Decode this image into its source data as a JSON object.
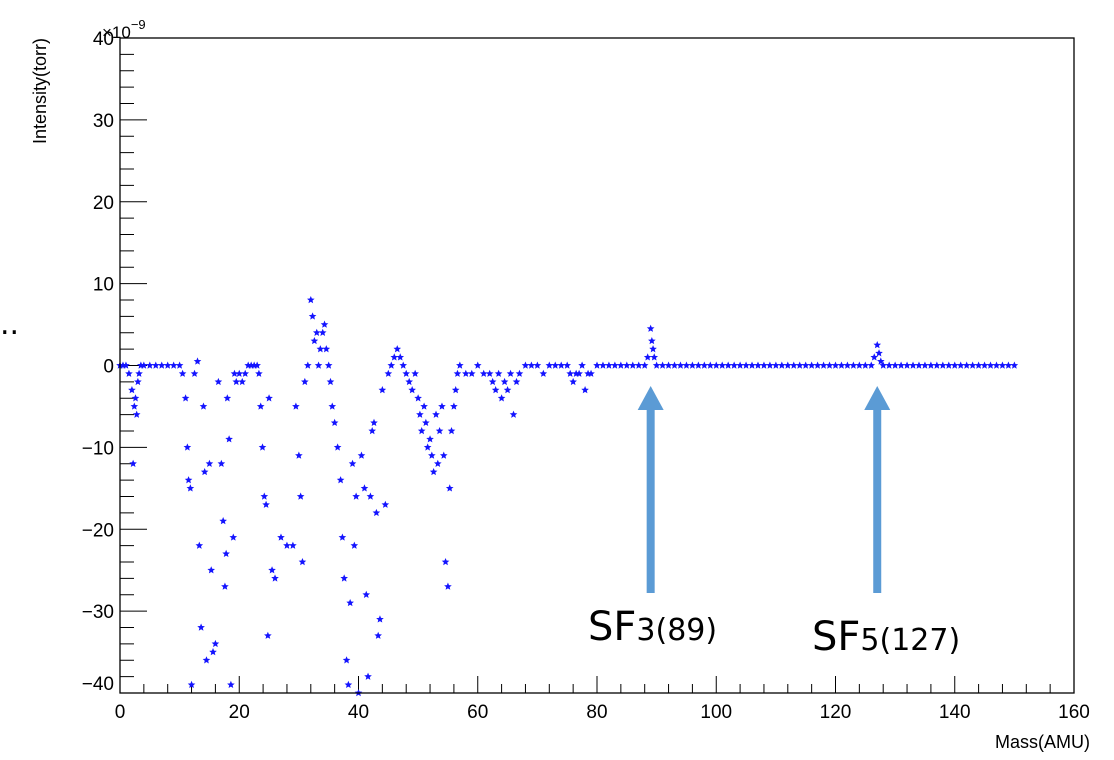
{
  "chart_data": {
    "type": "scatter",
    "title": "",
    "xlabel": "Mass(AMU)",
    "ylabel": "Intensity(torr)",
    "y_multiplier_label": "×10",
    "y_multiplier_exponent": "−9",
    "xlim": [
      0,
      160
    ],
    "ylim": [
      -40,
      40
    ],
    "x_ticks": [
      0,
      20,
      40,
      60,
      80,
      100,
      120,
      140,
      160
    ],
    "x_tick_labels": [
      "0",
      "20",
      "40",
      "60",
      "80",
      "100",
      "120",
      "140",
      "160"
    ],
    "y_ticks": [
      -40,
      -30,
      -20,
      -10,
      0,
      10,
      20,
      30,
      40
    ],
    "y_tick_labels": [
      "−40",
      "−30",
      "−20",
      "−10",
      "0",
      "10",
      "20",
      "30",
      "40"
    ],
    "marker_color": "#1414ff",
    "grid": false,
    "series": [
      {
        "points": [
          [
            0,
            0
          ],
          [
            0.5,
            0
          ],
          [
            1,
            0
          ],
          [
            1.5,
            -1
          ],
          [
            2,
            -3
          ],
          [
            2.2,
            -12
          ],
          [
            2.4,
            -5
          ],
          [
            2.6,
            -4
          ],
          [
            2.8,
            -6
          ],
          [
            3,
            -2
          ],
          [
            3.2,
            -1
          ],
          [
            3.5,
            0
          ],
          [
            4,
            0
          ],
          [
            5,
            0
          ],
          [
            6,
            0
          ],
          [
            7,
            0
          ],
          [
            8,
            0
          ],
          [
            9,
            0
          ],
          [
            10,
            0
          ],
          [
            10.5,
            -1
          ],
          [
            11,
            -4
          ],
          [
            11.3,
            -10
          ],
          [
            11.5,
            -14
          ],
          [
            11.8,
            -15
          ],
          [
            12,
            -39
          ],
          [
            12.5,
            -1
          ],
          [
            13,
            0.5
          ],
          [
            13.3,
            -22
          ],
          [
            13.6,
            -32
          ],
          [
            14,
            -5
          ],
          [
            14.2,
            -13
          ],
          [
            14.5,
            -36
          ],
          [
            15,
            -12
          ],
          [
            15.3,
            -25
          ],
          [
            15.6,
            -35
          ],
          [
            16,
            -34
          ],
          [
            16.5,
            -2
          ],
          [
            17,
            -12
          ],
          [
            17.3,
            -19
          ],
          [
            17.6,
            -27
          ],
          [
            17.8,
            -23
          ],
          [
            18,
            -4
          ],
          [
            18.3,
            -9
          ],
          [
            18.6,
            -39
          ],
          [
            19,
            -21
          ],
          [
            19.2,
            -1
          ],
          [
            19.5,
            -2
          ],
          [
            20,
            -1
          ],
          [
            20.5,
            -2
          ],
          [
            21,
            -1
          ],
          [
            21.5,
            0
          ],
          [
            22,
            0
          ],
          [
            22.5,
            0
          ],
          [
            23,
            0
          ],
          [
            23.3,
            -1
          ],
          [
            23.6,
            -5
          ],
          [
            23.9,
            -10
          ],
          [
            24.2,
            -16
          ],
          [
            24.5,
            -17
          ],
          [
            24.8,
            -33
          ],
          [
            25,
            -4
          ],
          [
            25.5,
            -25
          ],
          [
            26,
            -26
          ],
          [
            27,
            -21
          ],
          [
            28,
            -22
          ],
          [
            29,
            -22
          ],
          [
            29.5,
            -5
          ],
          [
            30,
            -11
          ],
          [
            30.3,
            -16
          ],
          [
            30.6,
            -24
          ],
          [
            31,
            -2
          ],
          [
            31.5,
            0
          ],
          [
            32,
            8
          ],
          [
            32.3,
            6
          ],
          [
            32.6,
            3
          ],
          [
            33,
            4
          ],
          [
            33.3,
            0
          ],
          [
            33.6,
            2
          ],
          [
            34,
            4
          ],
          [
            34.3,
            5
          ],
          [
            34.6,
            2
          ],
          [
            35,
            0
          ],
          [
            35.3,
            -2
          ],
          [
            35.6,
            -5
          ],
          [
            36,
            -7
          ],
          [
            36.5,
            -10
          ],
          [
            37,
            -14
          ],
          [
            37.3,
            -21
          ],
          [
            37.6,
            -26
          ],
          [
            38,
            -36
          ],
          [
            38.3,
            -39
          ],
          [
            38.6,
            -29
          ],
          [
            39,
            -12
          ],
          [
            39.3,
            -22
          ],
          [
            39.6,
            -16
          ],
          [
            40,
            -40
          ],
          [
            40.5,
            -11
          ],
          [
            41,
            -15
          ],
          [
            41.3,
            -28
          ],
          [
            41.6,
            -38
          ],
          [
            42,
            -16
          ],
          [
            42.3,
            -8
          ],
          [
            42.6,
            -7
          ],
          [
            43,
            -18
          ],
          [
            43.3,
            -33
          ],
          [
            43.6,
            -31
          ],
          [
            44,
            -3
          ],
          [
            44.5,
            -17
          ],
          [
            45,
            -1
          ],
          [
            45.5,
            0
          ],
          [
            46,
            1
          ],
          [
            46.5,
            2
          ],
          [
            47,
            1
          ],
          [
            47.5,
            0
          ],
          [
            48,
            -1
          ],
          [
            48.5,
            -2
          ],
          [
            49,
            -3
          ],
          [
            49.5,
            -1
          ],
          [
            50,
            -4
          ],
          [
            50.3,
            -6
          ],
          [
            50.6,
            -8
          ],
          [
            51,
            -5
          ],
          [
            51.3,
            -7
          ],
          [
            51.6,
            -10
          ],
          [
            52,
            -9
          ],
          [
            52.3,
            -11
          ],
          [
            52.6,
            -13
          ],
          [
            53,
            -6
          ],
          [
            53.3,
            -12
          ],
          [
            53.6,
            -8
          ],
          [
            54,
            -5
          ],
          [
            54.3,
            -11
          ],
          [
            54.6,
            -24
          ],
          [
            55,
            -27
          ],
          [
            55.3,
            -15
          ],
          [
            55.6,
            -8
          ],
          [
            56,
            -5
          ],
          [
            56.3,
            -3
          ],
          [
            56.6,
            -1
          ],
          [
            57,
            0
          ],
          [
            58,
            -1
          ],
          [
            59,
            -1
          ],
          [
            60,
            0
          ],
          [
            61,
            -1
          ],
          [
            62,
            -1
          ],
          [
            62.5,
            -2
          ],
          [
            63,
            -3
          ],
          [
            63.5,
            -1
          ],
          [
            64,
            -4
          ],
          [
            64.5,
            -2
          ],
          [
            65,
            -3
          ],
          [
            65.5,
            -1
          ],
          [
            66,
            -6
          ],
          [
            66.5,
            -2
          ],
          [
            67,
            -1
          ],
          [
            68,
            0
          ],
          [
            69,
            0
          ],
          [
            70,
            0
          ],
          [
            71,
            -1
          ],
          [
            72,
            0
          ],
          [
            73,
            0
          ],
          [
            74,
            0
          ],
          [
            75,
            0
          ],
          [
            75.5,
            -1
          ],
          [
            76,
            -2
          ],
          [
            76.5,
            -1
          ],
          [
            77,
            -1
          ],
          [
            77.5,
            0
          ],
          [
            78,
            -3
          ],
          [
            78.5,
            -1
          ],
          [
            79,
            -1
          ],
          [
            80,
            0
          ],
          [
            81,
            0
          ],
          [
            82,
            0
          ],
          [
            83,
            0
          ],
          [
            84,
            0
          ],
          [
            85,
            0
          ],
          [
            86,
            0
          ],
          [
            87,
            0
          ],
          [
            88,
            0
          ],
          [
            88.5,
            1
          ],
          [
            89,
            4.5
          ],
          [
            89.2,
            3
          ],
          [
            89.4,
            2
          ],
          [
            89.6,
            1
          ],
          [
            90,
            0
          ],
          [
            91,
            0
          ],
          [
            92,
            0
          ],
          [
            93,
            0
          ],
          [
            94,
            0
          ],
          [
            95,
            0
          ],
          [
            96,
            0
          ],
          [
            97,
            0
          ],
          [
            98,
            0
          ],
          [
            99,
            0
          ],
          [
            100,
            0
          ],
          [
            101,
            0
          ],
          [
            102,
            0
          ],
          [
            103,
            0
          ],
          [
            104,
            0
          ],
          [
            105,
            0
          ],
          [
            106,
            0
          ],
          [
            107,
            0
          ],
          [
            108,
            0
          ],
          [
            109,
            0
          ],
          [
            110,
            0
          ],
          [
            111,
            0
          ],
          [
            112,
            0
          ],
          [
            113,
            0
          ],
          [
            114,
            0
          ],
          [
            115,
            0
          ],
          [
            116,
            0
          ],
          [
            117,
            0
          ],
          [
            118,
            0
          ],
          [
            119,
            0
          ],
          [
            120,
            0
          ],
          [
            121,
            0
          ],
          [
            122,
            0
          ],
          [
            123,
            0
          ],
          [
            124,
            0
          ],
          [
            125,
            0
          ],
          [
            126,
            0
          ],
          [
            126.5,
            1
          ],
          [
            127,
            2.5
          ],
          [
            127.3,
            1.5
          ],
          [
            127.6,
            0.5
          ],
          [
            128,
            0
          ],
          [
            129,
            0
          ],
          [
            130,
            0
          ],
          [
            131,
            0
          ],
          [
            132,
            0
          ],
          [
            133,
            0
          ],
          [
            134,
            0
          ],
          [
            135,
            0
          ],
          [
            136,
            0
          ],
          [
            137,
            0
          ],
          [
            138,
            0
          ],
          [
            139,
            0
          ],
          [
            140,
            0
          ],
          [
            141,
            0
          ],
          [
            142,
            0
          ],
          [
            143,
            0
          ],
          [
            144,
            0
          ],
          [
            145,
            0
          ],
          [
            146,
            0
          ],
          [
            147,
            0
          ],
          [
            148,
            0
          ],
          [
            149,
            0
          ],
          [
            150,
            0
          ]
        ]
      }
    ],
    "annotations": [
      {
        "main": "SF",
        "sub": "3(89)",
        "arrow_x": 89,
        "arrow_color": "#5b9bd5"
      },
      {
        "main": "SF",
        "sub": "5(127)",
        "arrow_x": 127,
        "arrow_color": "#5b9bd5"
      }
    ],
    "stray_text": ".."
  }
}
